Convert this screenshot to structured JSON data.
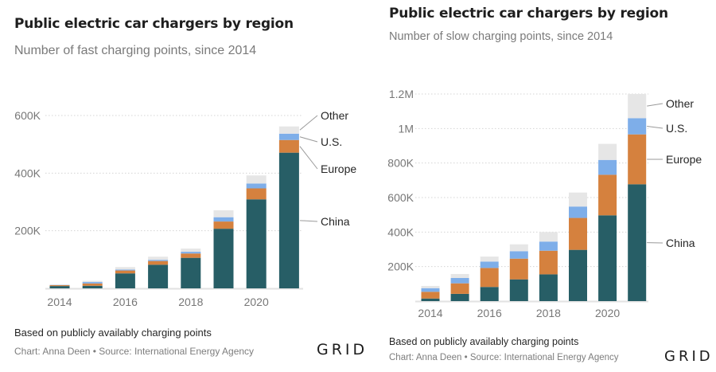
{
  "colors": {
    "China": "#275e66",
    "Europe": "#d5813e",
    "U.S.": "#7eaee9",
    "Other": "#e6e6e6",
    "grid": "#d4d4d4",
    "leader": "#9a9a9a"
  },
  "branding": {
    "logo": "GRID"
  },
  "chart_data": [
    {
      "type": "bar",
      "stacked": true,
      "title": "Public electric car chargers by region",
      "subtitle": "Number of fast charging points, since 2014",
      "note": "Based on publicly availably charging points",
      "credit": "Chart: Anna Deen • Source: International Energy Agency",
      "xlabel": "",
      "ylabel": "",
      "categories": [
        "2014",
        "2015",
        "2016",
        "2017",
        "2018",
        "2019",
        "2020",
        "2021"
      ],
      "x_tick_labels": [
        "2014",
        "2016",
        "2018",
        "2020"
      ],
      "y_ticks": [
        200000,
        400000,
        600000
      ],
      "y_tick_labels": [
        "200K",
        "400K",
        "600K"
      ],
      "ylim": [
        0,
        600000
      ],
      "grid": true,
      "legend": "right-inline",
      "series": [
        {
          "name": "China",
          "values": [
            8000,
            9000,
            52000,
            82000,
            106000,
            207000,
            309000,
            471000
          ]
        },
        {
          "name": "Europe",
          "values": [
            3000,
            8000,
            10000,
            13000,
            15000,
            25000,
            38000,
            44000
          ]
        },
        {
          "name": "U.S.",
          "values": [
            1000,
            5000,
            3000,
            4000,
            6000,
            15000,
            17000,
            22000
          ]
        },
        {
          "name": "Other",
          "values": [
            1000,
            4000,
            9000,
            11000,
            11000,
            24000,
            28000,
            25000
          ]
        }
      ]
    },
    {
      "type": "bar",
      "stacked": true,
      "title": "Public electric car chargers by region",
      "subtitle": "Number of slow charging points, since 2014",
      "note": "Based on publicly availably charging points",
      "credit": "Chart: Anna Deen • Source: International Energy Agency",
      "xlabel": "",
      "ylabel": "",
      "categories": [
        "2014",
        "2015",
        "2016",
        "2017",
        "2018",
        "2019",
        "2020",
        "2021"
      ],
      "x_tick_labels": [
        "2014",
        "2016",
        "2018",
        "2020"
      ],
      "y_ticks": [
        200000,
        400000,
        600000,
        800000,
        1000000,
        1200000
      ],
      "y_tick_labels": [
        "200K",
        "400K",
        "600K",
        "800K",
        "1M",
        "1.2M"
      ],
      "ylim": [
        0,
        1200000
      ],
      "grid": true,
      "legend": "right-inline",
      "series": [
        {
          "name": "China",
          "values": [
            15000,
            42000,
            82000,
            126000,
            155000,
            297000,
            497000,
            677000
          ]
        },
        {
          "name": "Europe",
          "values": [
            39000,
            61000,
            110000,
            120000,
            137000,
            185000,
            235000,
            289000
          ]
        },
        {
          "name": "U.S.",
          "values": [
            21000,
            31000,
            37000,
            43000,
            53000,
            66000,
            86000,
            94000
          ]
        },
        {
          "name": "Other",
          "values": [
            13000,
            23000,
            29000,
            40000,
            55000,
            81000,
            93000,
            140000
          ]
        }
      ]
    }
  ]
}
